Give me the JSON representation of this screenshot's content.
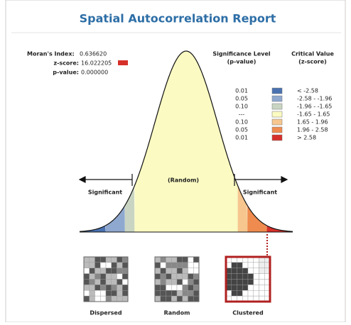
{
  "title": "Spatial Autocorrelation Report",
  "stats": [
    {
      "label": "Moran's Index:",
      "value": "0.636620"
    },
    {
      "label": "z-score:",
      "value": "16.022205"
    },
    {
      "label": "p-value:",
      "value": "0.000000"
    }
  ],
  "legend": {
    "headers": [
      "Significance Level",
      "(p-value)",
      "Critical Value",
      "(z-score)"
    ],
    "rows": [
      {
        "p": "0.01",
        "z": "< -2.58",
        "color": "#4a72b0"
      },
      {
        "p": "0.05",
        "z": "-2.58 - -1.96",
        "color": "#8fa8cf"
      },
      {
        "p": "0.10",
        "z": "-1.96 - -1.65",
        "color": "#c9d5c2"
      },
      {
        "p": "---",
        "z": "-1.65 - 1.65",
        "color": "#fafac2"
      },
      {
        "p": "0.10",
        "z": "1.65 - 1.96",
        "color": "#f6c68e"
      },
      {
        "p": "0.05",
        "z": "1.96 - 2.58",
        "color": "#ef8b4e"
      },
      {
        "p": "0.01",
        "z": "> 2.58",
        "color": "#d6302a"
      }
    ]
  },
  "curve_labels": [
    "Significant",
    "(Random)",
    "Significant"
  ],
  "maps": [
    "Dispersed",
    "Random",
    "Clustered"
  ]
}
